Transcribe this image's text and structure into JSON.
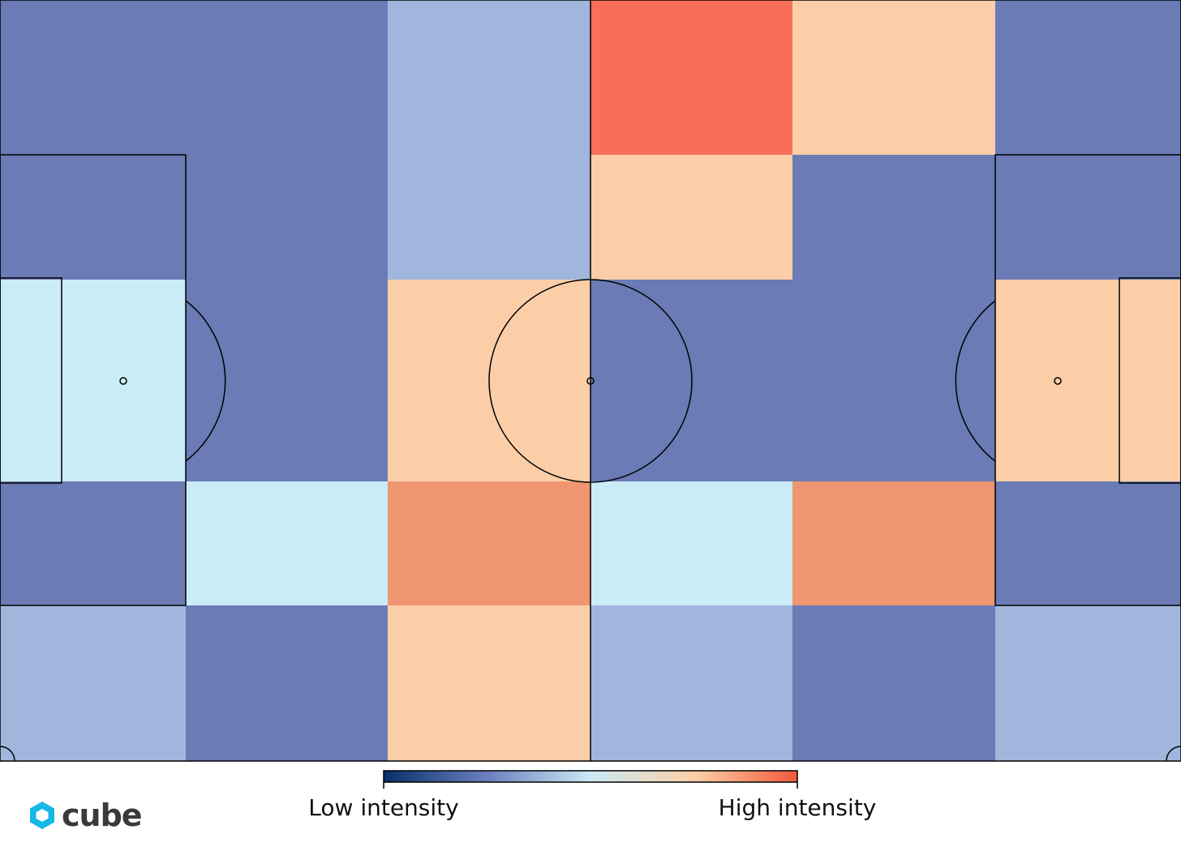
{
  "chart_data": {
    "type": "heatmap",
    "title": "",
    "rows": 5,
    "cols": 6,
    "scale": {
      "colors": [
        "#08306b",
        "#6a7fbf",
        "#cbeaf5",
        "#fcd0a8",
        "#f05a3a"
      ],
      "low_label": "Low intensity",
      "high_label": "High intensity"
    },
    "values": [
      [
        0.15,
        0.15,
        0.35,
        0.88,
        0.65,
        0.15
      ],
      [
        0.15,
        0.15,
        0.35,
        0.65,
        0.15,
        0.15
      ],
      [
        0.5,
        0.15,
        0.65,
        0.15,
        0.15,
        0.65
      ],
      [
        0.15,
        0.5,
        0.78,
        0.5,
        0.78,
        0.15
      ],
      [
        0.35,
        0.15,
        0.65,
        0.35,
        0.15,
        0.35
      ]
    ],
    "cell_colors": [
      [
        "#6a7bb5",
        "#6a7bb5",
        "#a0b6dc",
        "#f76f57",
        "#fccea8",
        "#6a7bb5"
      ],
      [
        "#6a7bb5",
        "#6a7bb5",
        "#a0b6dc",
        "#fccea8",
        "#6a7bb5",
        "#6a7bb5"
      ],
      [
        "#caecf6",
        "#6a7bb5",
        "#fccea8",
        "#6a7bb5",
        "#6a7bb5",
        "#fccea8"
      ],
      [
        "#6a7bb5",
        "#caecf6",
        "#f09572",
        "#caecf6",
        "#f09572",
        "#6a7bb5"
      ],
      [
        "#a0b6dc",
        "#6a7bb5",
        "#fccea8",
        "#a0b6dc",
        "#6a7bb5",
        "#a0b6dc"
      ]
    ]
  },
  "brand": {
    "name": "cube",
    "icon": "cube-logo-icon",
    "color": "#17b7e6"
  }
}
